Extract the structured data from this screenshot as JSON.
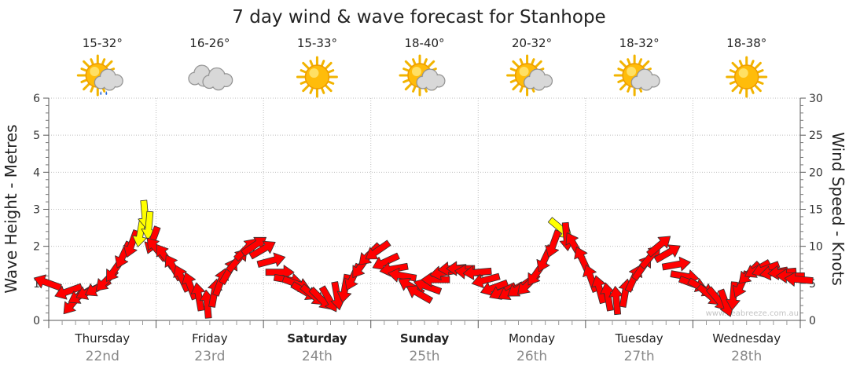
{
  "chart_data": {
    "type": "line",
    "title": "7 day wind & wave forecast for Stanhope",
    "ylabel": "Wave Height - Metres",
    "y2label": "Wind Speed - Knots",
    "ylim": [
      0,
      6
    ],
    "y2lim": [
      0,
      30
    ],
    "yticks": [
      "0",
      "1",
      "2",
      "3",
      "4",
      "5",
      "6"
    ],
    "y2ticks": [
      "0",
      "5",
      "10",
      "15",
      "20",
      "25",
      "30"
    ],
    "grid": true,
    "days": [
      {
        "name": "Thursday",
        "date": "22nd",
        "temp": "15-32°",
        "icon": "sun-cloud-rain-icon",
        "bold": false
      },
      {
        "name": "Friday",
        "date": "23rd",
        "temp": "16-26°",
        "icon": "cloud-icon",
        "bold": false
      },
      {
        "name": "Saturday",
        "date": "24th",
        "temp": "15-33°",
        "icon": "sun-icon",
        "bold": true
      },
      {
        "name": "Sunday",
        "date": "25th",
        "temp": "18-40°",
        "icon": "sun-cloud-icon",
        "bold": true
      },
      {
        "name": "Monday",
        "date": "26th",
        "temp": "20-32°",
        "icon": "sun-cloud-icon",
        "bold": false
      },
      {
        "name": "Tuesday",
        "date": "27th",
        "temp": "18-32°",
        "icon": "sun-cloud-icon",
        "bold": false
      },
      {
        "name": "Wednesday",
        "date": "28th",
        "temp": "18-38°",
        "icon": "sun-icon",
        "bold": false
      }
    ],
    "series": [
      {
        "name": "Wind Speed (Knots) and direction",
        "unit": "knots",
        "colors": {
          "normal": "#ff0000",
          "strong": "#ffff00",
          "outline": "#333333"
        },
        "strong_threshold": 12,
        "points": [
          {
            "t": 0.0,
            "v": 5.0,
            "d": 290
          },
          {
            "t": 0.25,
            "v": 4.0,
            "d": 250
          },
          {
            "t": 0.3,
            "v": 2.5,
            "d": 220
          },
          {
            "t": 0.4,
            "v": 3.5,
            "d": 240
          },
          {
            "t": 0.5,
            "v": 4.0,
            "d": 245
          },
          {
            "t": 0.6,
            "v": 4.5,
            "d": 240
          },
          {
            "t": 0.7,
            "v": 5.5,
            "d": 225
          },
          {
            "t": 0.8,
            "v": 7.0,
            "d": 215
          },
          {
            "t": 0.9,
            "v": 9.0,
            "d": 205
          },
          {
            "t": 1.0,
            "v": 10.5,
            "d": 200
          },
          {
            "t": 1.1,
            "v": 12.0,
            "d": 190
          },
          {
            "t": 1.15,
            "v": 14.5,
            "d": 175
          },
          {
            "t": 1.2,
            "v": 13.0,
            "d": 185
          },
          {
            "t": 1.25,
            "v": 11.0,
            "d": 200
          },
          {
            "t": 1.3,
            "v": 9.5,
            "d": 320
          },
          {
            "t": 1.4,
            "v": 8.5,
            "d": 325
          },
          {
            "t": 1.5,
            "v": 7.0,
            "d": 330
          },
          {
            "t": 1.6,
            "v": 5.5,
            "d": 335
          },
          {
            "t": 1.7,
            "v": 4.5,
            "d": 340
          },
          {
            "t": 1.8,
            "v": 3.0,
            "d": 350
          },
          {
            "t": 1.9,
            "v": 2.0,
            "d": 355
          },
          {
            "t": 1.98,
            "v": 3.5,
            "d": 10
          },
          {
            "t": 2.05,
            "v": 5.0,
            "d": 20
          },
          {
            "t": 2.15,
            "v": 6.5,
            "d": 30
          },
          {
            "t": 2.25,
            "v": 8.0,
            "d": 40
          },
          {
            "t": 2.35,
            "v": 9.5,
            "d": 45
          },
          {
            "t": 2.45,
            "v": 10.0,
            "d": 55
          },
          {
            "t": 2.55,
            "v": 9.5,
            "d": 60
          },
          {
            "t": 2.65,
            "v": 8.0,
            "d": 75
          },
          {
            "t": 2.75,
            "v": 6.5,
            "d": 90
          },
          {
            "t": 2.85,
            "v": 5.5,
            "d": 100
          },
          {
            "t": 2.95,
            "v": 5.0,
            "d": 110
          },
          {
            "t": 3.05,
            "v": 4.0,
            "d": 120
          },
          {
            "t": 3.15,
            "v": 3.5,
            "d": 130
          },
          {
            "t": 3.25,
            "v": 3.0,
            "d": 135
          },
          {
            "t": 3.35,
            "v": 3.0,
            "d": 150
          },
          {
            "t": 3.45,
            "v": 3.5,
            "d": 170
          },
          {
            "t": 3.55,
            "v": 4.5,
            "d": 190
          },
          {
            "t": 3.65,
            "v": 6.0,
            "d": 205
          },
          {
            "t": 3.75,
            "v": 7.5,
            "d": 215
          },
          {
            "t": 3.85,
            "v": 9.0,
            "d": 225
          },
          {
            "t": 3.95,
            "v": 9.5,
            "d": 235
          },
          {
            "t": 4.05,
            "v": 8.0,
            "d": 245
          },
          {
            "t": 4.15,
            "v": 7.0,
            "d": 260
          },
          {
            "t": 4.25,
            "v": 6.0,
            "d": 280
          },
          {
            "t": 4.35,
            "v": 4.5,
            "d": 300
          },
          {
            "t": 4.45,
            "v": 3.5,
            "d": 300
          },
          {
            "t": 4.55,
            "v": 4.5,
            "d": 290
          },
          {
            "t": 4.65,
            "v": 5.5,
            "d": 270
          },
          {
            "t": 4.75,
            "v": 6.5,
            "d": 260
          },
          {
            "t": 4.85,
            "v": 7.0,
            "d": 265
          },
          {
            "t": 4.95,
            "v": 7.0,
            "d": 270
          },
          {
            "t": 5.05,
            "v": 6.5,
            "d": 275
          },
          {
            "t": 5.15,
            "v": 6.5,
            "d": 265
          },
          {
            "t": 5.25,
            "v": 5.5,
            "d": 255
          },
          {
            "t": 5.35,
            "v": 4.5,
            "d": 250
          },
          {
            "t": 5.45,
            "v": 4.0,
            "d": 245
          },
          {
            "t": 5.55,
            "v": 4.0,
            "d": 240
          },
          {
            "t": 5.65,
            "v": 4.5,
            "d": 235
          },
          {
            "t": 5.75,
            "v": 5.0,
            "d": 225
          },
          {
            "t": 5.85,
            "v": 6.5,
            "d": 215
          },
          {
            "t": 5.95,
            "v": 8.5,
            "d": 205
          },
          {
            "t": 6.05,
            "v": 10.5,
            "d": 200
          },
          {
            "t": 6.12,
            "v": 12.5,
            "d": 130
          },
          {
            "t": 6.2,
            "v": 11.5,
            "d": 175
          },
          {
            "t": 6.3,
            "v": 10.0,
            "d": 330
          },
          {
            "t": 6.4,
            "v": 8.0,
            "d": 335
          },
          {
            "t": 6.5,
            "v": 5.5,
            "d": 340
          },
          {
            "t": 6.6,
            "v": 4.0,
            "d": 345
          },
          {
            "t": 6.7,
            "v": 3.0,
            "d": 350
          },
          {
            "t": 6.8,
            "v": 2.5,
            "d": 355
          },
          {
            "t": 6.9,
            "v": 3.5,
            "d": 10
          },
          {
            "t": 7.0,
            "v": 5.5,
            "d": 25
          },
          {
            "t": 7.1,
            "v": 7.0,
            "d": 35
          },
          {
            "t": 7.2,
            "v": 8.5,
            "d": 40
          },
          {
            "t": 7.3,
            "v": 10.0,
            "d": 50
          },
          {
            "t": 7.4,
            "v": 9.0,
            "d": 60
          },
          {
            "t": 7.5,
            "v": 7.5,
            "d": 80
          },
          {
            "t": 7.6,
            "v": 6.0,
            "d": 100
          },
          {
            "t": 7.7,
            "v": 5.0,
            "d": 110
          },
          {
            "t": 7.8,
            "v": 4.5,
            "d": 120
          },
          {
            "t": 7.9,
            "v": 3.5,
            "d": 130
          },
          {
            "t": 8.0,
            "v": 3.0,
            "d": 140
          },
          {
            "t": 8.1,
            "v": 2.5,
            "d": 160
          },
          {
            "t": 8.2,
            "v": 3.5,
            "d": 185
          },
          {
            "t": 8.3,
            "v": 5.0,
            "d": 205
          },
          {
            "t": 8.4,
            "v": 6.5,
            "d": 225
          },
          {
            "t": 8.5,
            "v": 7.0,
            "d": 240
          },
          {
            "t": 8.6,
            "v": 7.0,
            "d": 250
          },
          {
            "t": 8.7,
            "v": 6.5,
            "d": 260
          },
          {
            "t": 8.8,
            "v": 6.5,
            "d": 265
          },
          {
            "t": 8.9,
            "v": 6.0,
            "d": 270
          },
          {
            "t": 9.0,
            "v": 5.5,
            "d": 275
          }
        ]
      }
    ],
    "x_periods": 9,
    "watermark": "www.seabreeze.com.au"
  }
}
